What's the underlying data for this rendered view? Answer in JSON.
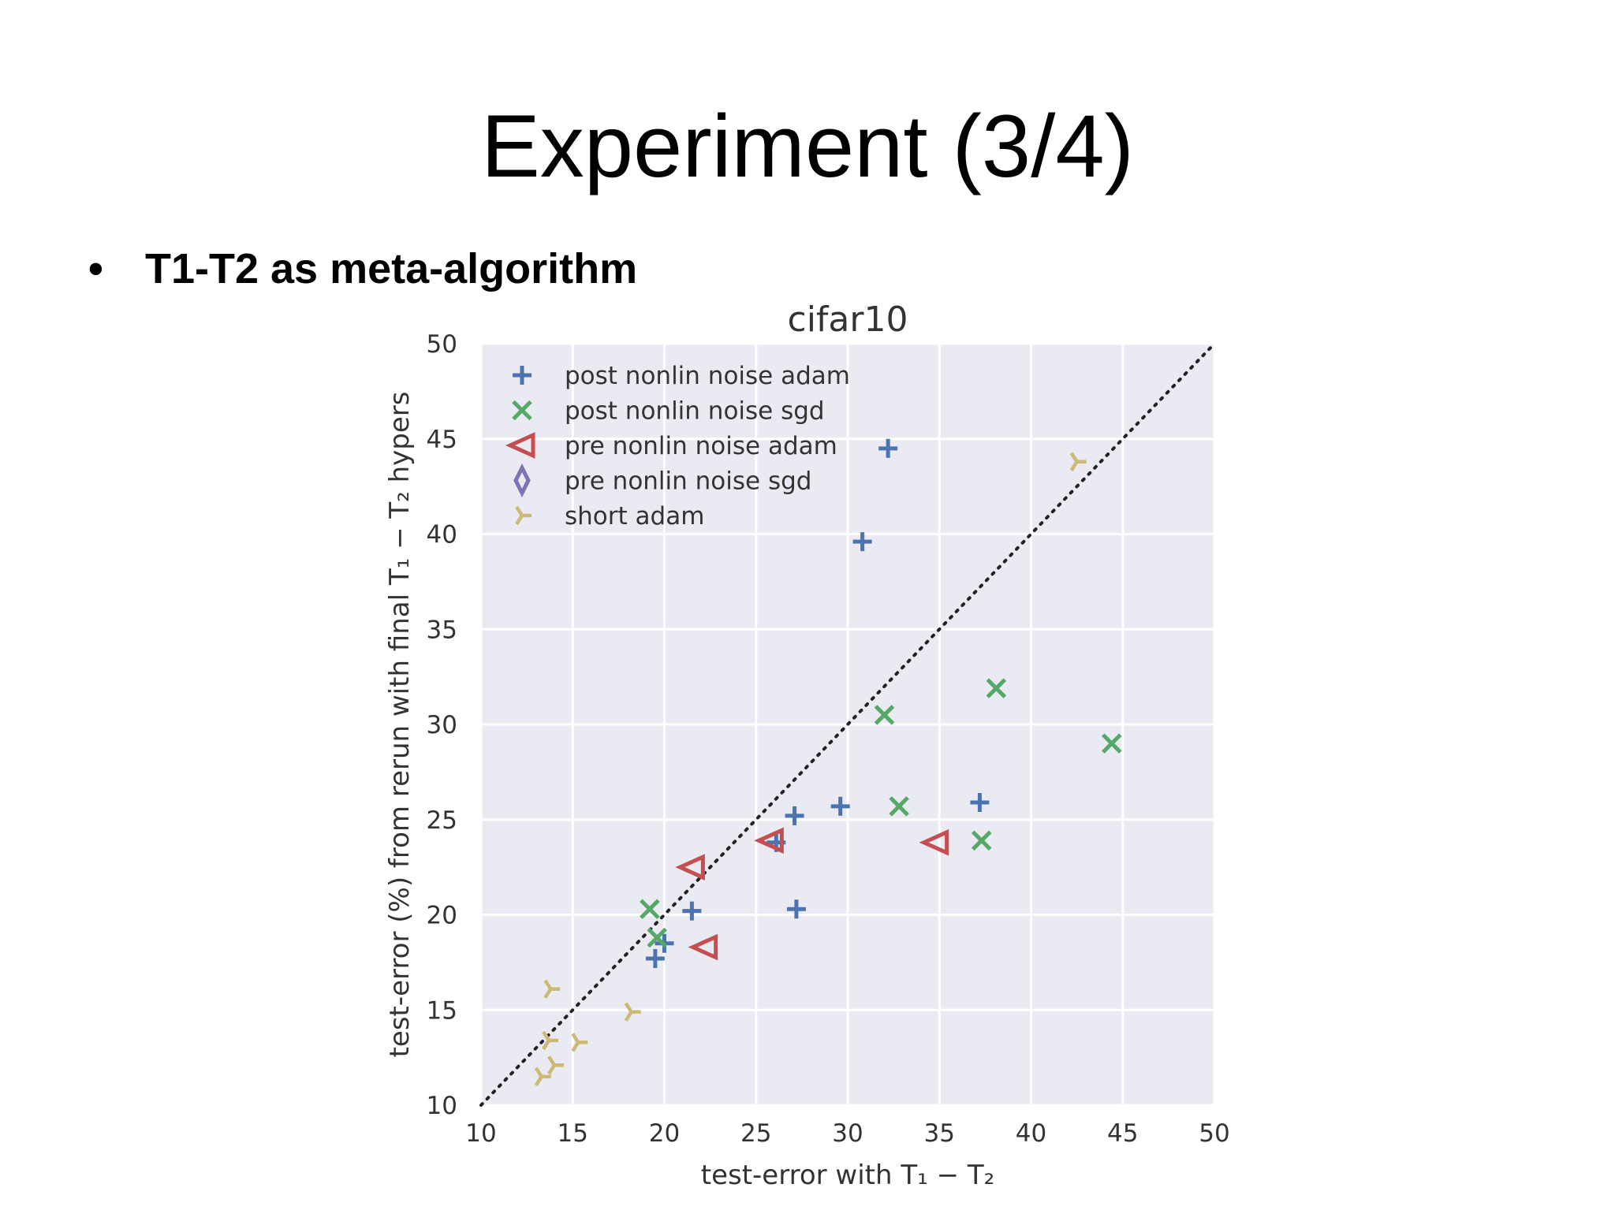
{
  "slide": {
    "title": "Experiment (3/4)",
    "bullet_symbol": "•",
    "bullet_text": "T1-T2 as meta-algorithm"
  },
  "chart_data": {
    "type": "scatter",
    "title": "cifar10",
    "xlabel": "test-error with T₁ − T₂",
    "ylabel": "test-error (%) from rerun with final T₁ − T₂ hypers",
    "xlim": [
      10,
      50
    ],
    "ylim": [
      10,
      50
    ],
    "xticks": [
      10,
      15,
      20,
      25,
      30,
      35,
      40,
      45,
      50
    ],
    "yticks": [
      10,
      15,
      20,
      25,
      30,
      35,
      40,
      45,
      50
    ],
    "grid": true,
    "background": "#eaeaf2",
    "legend_position": "top-left",
    "diagonal_line": {
      "from": [
        10,
        10
      ],
      "to": [
        50,
        50
      ],
      "style": "dotted"
    },
    "series": [
      {
        "name": "post nonlin noise adam",
        "marker": "plus",
        "color": "#4c72b0",
        "points": [
          [
            32.2,
            44.5
          ],
          [
            30.8,
            39.6
          ],
          [
            27.1,
            25.2
          ],
          [
            29.6,
            25.7
          ],
          [
            37.2,
            25.9
          ],
          [
            26.1,
            23.8
          ],
          [
            27.2,
            20.3
          ],
          [
            21.5,
            20.2
          ],
          [
            19.5,
            17.7
          ],
          [
            20.0,
            18.5
          ]
        ]
      },
      {
        "name": "post nonlin noise sgd",
        "marker": "x",
        "color": "#55a868",
        "points": [
          [
            38.1,
            31.9
          ],
          [
            32.0,
            30.5
          ],
          [
            44.4,
            29.0
          ],
          [
            32.8,
            25.7
          ],
          [
            37.3,
            23.9
          ],
          [
            19.2,
            20.3
          ],
          [
            19.6,
            18.8
          ]
        ]
      },
      {
        "name": "pre nonlin noise adam",
        "marker": "triangle-left",
        "color": "#c44e52",
        "points": [
          [
            21.5,
            22.5
          ],
          [
            25.8,
            23.9
          ],
          [
            34.8,
            23.8
          ],
          [
            22.2,
            18.3
          ]
        ]
      },
      {
        "name": "pre nonlin noise sgd",
        "marker": "thin-diamond",
        "color": "#8172b2",
        "points": []
      },
      {
        "name": "short adam",
        "marker": "tri-right",
        "color": "#ccb974",
        "points": [
          [
            42.5,
            43.8
          ],
          [
            13.8,
            16.1
          ],
          [
            18.2,
            14.9
          ],
          [
            13.7,
            13.4
          ],
          [
            15.3,
            13.3
          ],
          [
            14.0,
            12.1
          ],
          [
            13.3,
            11.5
          ]
        ]
      }
    ]
  }
}
